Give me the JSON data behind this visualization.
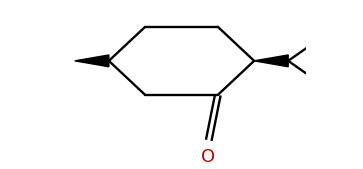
{
  "bg_color": "#ffffff",
  "bond_color": "#000000",
  "oxygen_color": "#cc0000",
  "line_width": 1.7,
  "wedge_color": "#000000",
  "oxygen_label": "O",
  "oxygen_fontsize": 13,
  "fig_w": 3.63,
  "fig_h": 1.69,
  "dpi": 100
}
